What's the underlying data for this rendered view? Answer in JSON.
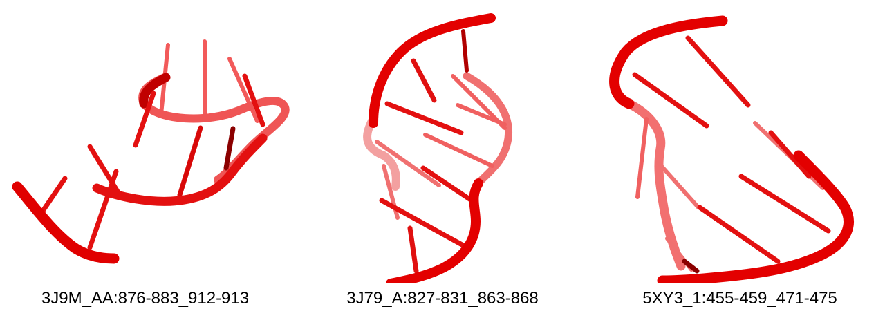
{
  "colors": {
    "backbone": "#e30000",
    "backbone_faded": "#f05050",
    "base": "#e01010",
    "base_dark": "#8b0000"
  },
  "panels": [
    {
      "caption": "3J9M_AA:876-883_912-913"
    },
    {
      "caption": "3J79_A:827-831_863-868"
    },
    {
      "caption": "5XY3_1:455-459_471-475"
    }
  ]
}
